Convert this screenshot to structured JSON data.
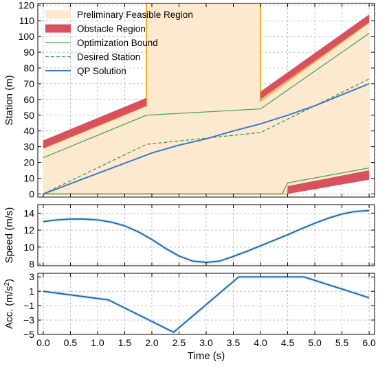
{
  "chart_data": [
    {
      "type": "area",
      "xlabel": "",
      "ylabel": "Station (m)",
      "xlim": [
        -0.1,
        6.1
      ],
      "ylim": [
        -2,
        121
      ],
      "xticks": [
        0.0,
        0.5,
        1.0,
        1.5,
        2.0,
        2.5,
        3.0,
        3.5,
        4.0,
        4.5,
        5.0,
        5.5,
        6.0
      ],
      "yticks": [
        0,
        10,
        20,
        30,
        40,
        50,
        60,
        70,
        80,
        90,
        100,
        110,
        120
      ],
      "grid": true,
      "legend_position": "top-left",
      "legend": [
        "Preliminary Feasible Region",
        "Obstacle Region",
        "Optimization Bound",
        "Desired Station",
        "QP Solution"
      ],
      "colors": {
        "feasible": "#fde9cf",
        "feasible_edge": "#f4a81c",
        "obstacle": "#d9515e",
        "bound": "#4aa55a",
        "desired": "#3f9a48",
        "qp": "#3c78c3"
      },
      "preliminary_feasible_upper": {
        "x": [
          0.0,
          1.9,
          1.9,
          4.0,
          4.0,
          6.0
        ],
        "y": [
          29,
          56,
          122,
          122,
          59,
          109
        ]
      },
      "preliminary_feasible_lower": {
        "x": [
          0.0,
          4.5,
          4.5,
          6.0
        ],
        "y": [
          0,
          0,
          3,
          12
        ]
      },
      "obstacle_regions": [
        {
          "x": [
            0.0,
            1.9
          ],
          "y_lower": [
            29,
            56
          ],
          "y_upper": [
            34,
            61
          ]
        },
        {
          "x": [
            4.0,
            6.0
          ],
          "y_lower": [
            60,
            109
          ],
          "y_upper": [
            65,
            114
          ]
        },
        {
          "x": [
            4.5,
            6.0
          ],
          "y_lower": [
            0,
            9
          ],
          "y_upper": [
            5,
            15
          ]
        }
      ],
      "optimization_bound_upper": {
        "x": [
          0.0,
          1.9,
          4.0,
          6.0
        ],
        "y": [
          23,
          50,
          54,
          102
        ]
      },
      "optimization_bound_lower": {
        "x": [
          0.0,
          4.4,
          4.5,
          6.0
        ],
        "y": [
          0,
          0,
          7,
          16.5
        ]
      },
      "desired_station": {
        "x": [
          0.0,
          1.9,
          4.0,
          6.0
        ],
        "y": [
          0,
          31.5,
          39,
          73
        ]
      },
      "qp_solution": {
        "x": [
          0.0,
          0.5,
          1.0,
          1.5,
          2.0,
          2.5,
          3.0,
          3.5,
          4.0,
          4.5,
          5.0,
          5.5,
          6.0
        ],
        "y": [
          0,
          6.5,
          13,
          19.5,
          26,
          31,
          35,
          40,
          44.5,
          50,
          56,
          63,
          70
        ]
      }
    },
    {
      "type": "line",
      "xlabel": "",
      "ylabel": "Speed (m/s)",
      "xlim": [
        -0.1,
        6.1
      ],
      "ylim": [
        7.8,
        15
      ],
      "yticks": [
        8,
        10,
        12,
        14
      ],
      "grid": true,
      "series": [
        {
          "x": [
            0.0,
            0.25,
            0.5,
            0.75,
            1.0,
            1.25,
            1.5,
            1.75,
            2.0,
            2.25,
            2.5,
            2.75,
            3.0,
            3.25,
            3.5,
            3.75,
            4.0,
            4.25,
            4.5,
            4.75,
            5.0,
            5.25,
            5.5,
            5.75,
            6.0
          ],
          "y": [
            13.0,
            13.2,
            13.3,
            13.3,
            13.2,
            12.95,
            12.5,
            11.8,
            10.9,
            9.85,
            8.95,
            8.35,
            8.2,
            8.35,
            8.9,
            9.5,
            10.15,
            10.8,
            11.45,
            12.15,
            12.8,
            13.4,
            13.9,
            14.2,
            14.3
          ]
        }
      ]
    },
    {
      "type": "line",
      "xlabel": "Time (s)",
      "ylabel": "Acc. (m/s²)",
      "xlim": [
        -0.1,
        6.1
      ],
      "ylim": [
        -5,
        3.5
      ],
      "yticks": [
        -5,
        -3,
        -1,
        1,
        3
      ],
      "grid": true,
      "series": [
        {
          "x": [
            0.0,
            1.2,
            2.4,
            3.6,
            4.8,
            6.0
          ],
          "y": [
            1.0,
            -0.2,
            -4.7,
            3.0,
            3.0,
            0.1
          ]
        }
      ]
    }
  ]
}
